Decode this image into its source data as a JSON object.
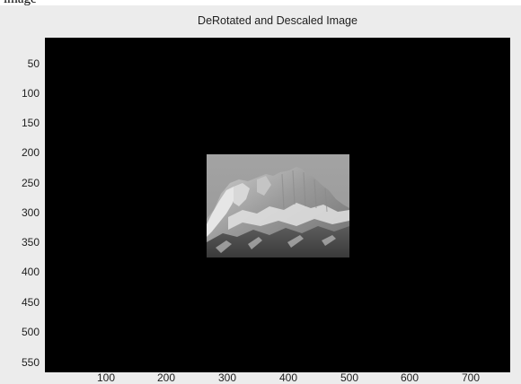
{
  "caption": "image",
  "figure": {
    "title": "DeRotated and Descaled Image",
    "x_ticks": [
      "100",
      "200",
      "300",
      "400",
      "500",
      "600",
      "700"
    ],
    "y_ticks": [
      "50",
      "100",
      "150",
      "200",
      "250",
      "300",
      "350",
      "400",
      "450",
      "500",
      "550"
    ],
    "background_color": "#000000",
    "panel_color": "#ececec"
  }
}
